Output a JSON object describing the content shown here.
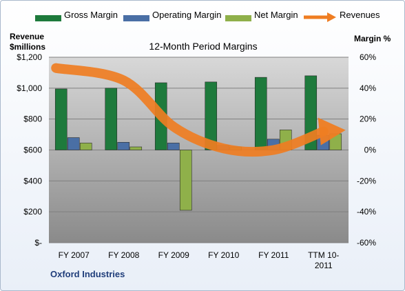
{
  "legend": {
    "gross": "Gross Margin",
    "operating": "Operating Margin",
    "net": "Net Margin",
    "revenues": "Revenues"
  },
  "axis_labels": {
    "left": "Revenue\n$millions",
    "right": "Margin %"
  },
  "chart_title": "12-Month Period Margins",
  "company": "Oxford Industries",
  "colors": {
    "gross": "#1e7a3c",
    "operating": "#4a6fa5",
    "net": "#8fb04a",
    "revenues": "#ef7d22",
    "plot_bg_top": "#d8d8d8",
    "plot_bg_bottom": "#8a8a8a"
  },
  "chart_data": {
    "type": "bar",
    "title": "12-Month Period Margins",
    "categories": [
      "FY 2007",
      "FY 2008",
      "FY 2009",
      "FY 2010",
      "FY 2011",
      "TTM 10-2011"
    ],
    "category_lines": [
      [
        "FY 2007"
      ],
      [
        "FY 2008"
      ],
      [
        "FY 2009"
      ],
      [
        "FY 2010"
      ],
      [
        "FY 2011"
      ],
      [
        "TTM 10-",
        "2011"
      ]
    ],
    "left_axis": {
      "label": "Revenue $millions",
      "ylim": [
        0,
        1200
      ],
      "ticks": [
        "$-",
        "$200",
        "$400",
        "$600",
        "$800",
        "$1,000",
        "$1,200"
      ],
      "tick_values": [
        0,
        200,
        400,
        600,
        800,
        1000,
        1200
      ]
    },
    "right_axis": {
      "label": "Margin %",
      "ylim": [
        -60,
        60
      ],
      "ticks": [
        "-60%",
        "-40%",
        "-20%",
        "0%",
        "20%",
        "40%",
        "60%"
      ],
      "tick_values": [
        -60,
        -40,
        -20,
        0,
        20,
        40,
        60
      ]
    },
    "series": [
      {
        "name": "Gross Margin",
        "axis": "right",
        "values": [
          39.5,
          40,
          43.5,
          44,
          47,
          48
        ]
      },
      {
        "name": "Operating Margin",
        "axis": "right",
        "values": [
          8,
          5,
          4.5,
          3,
          7,
          9.5
        ]
      },
      {
        "name": "Net Margin",
        "axis": "right",
        "values": [
          4.5,
          2,
          -39,
          2,
          13,
          10.5
        ]
      },
      {
        "name": "Revenues",
        "axis": "left",
        "type": "line",
        "values": [
          1130,
          1050,
          750,
          610,
          600,
          720
        ]
      }
    ],
    "grid": true
  }
}
